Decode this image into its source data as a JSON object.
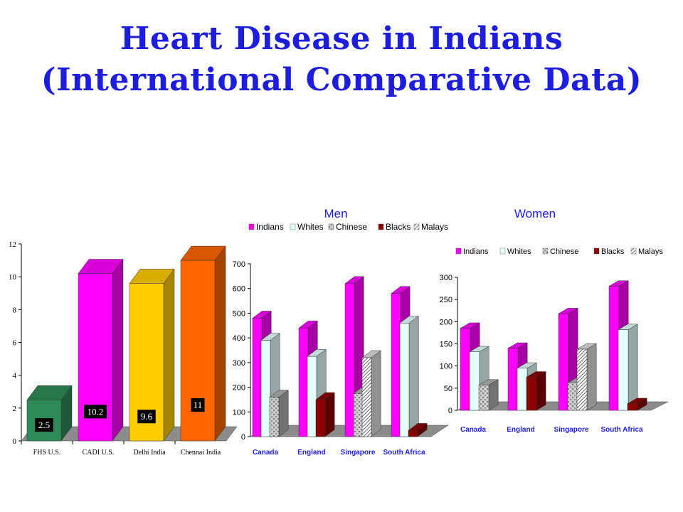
{
  "title_line1": "Heart Disease in Indians",
  "title_line2": "(International Comparative Data)",
  "chart_data": [
    {
      "type": "bar",
      "title": "",
      "categories": [
        "FHS U.S.",
        "CADI U.S.",
        "Delhi India",
        "Chennai India"
      ],
      "values": [
        2.5,
        10.2,
        9.6,
        11
      ],
      "data_labels": [
        "2.5",
        "10.2",
        "9.6",
        "11"
      ],
      "colors": [
        "#2e8b57",
        "#ff00ff",
        "#ffcc00",
        "#ff6600"
      ],
      "ylim": [
        0,
        12
      ],
      "yticks": [
        0,
        2,
        4,
        6,
        8,
        10,
        12
      ],
      "legend": "none",
      "grid": false
    },
    {
      "type": "bar",
      "title": "Men",
      "categories": [
        "Canada",
        "England",
        "Singapore",
        "South Africa"
      ],
      "series": [
        {
          "name": "Indians",
          "values": [
            480,
            440,
            620,
            580
          ],
          "color": "#ff00ff"
        },
        {
          "name": "Whites",
          "values": [
            390,
            325,
            null,
            460
          ],
          "color": "#e6ffff"
        },
        {
          "name": "Chinese",
          "values": [
            160,
            null,
            175,
            null
          ],
          "color": "#b0b0b0"
        },
        {
          "name": "Blacks",
          "values": [
            null,
            150,
            null,
            25
          ],
          "color": "#8b0000"
        },
        {
          "name": "Malays",
          "values": [
            null,
            null,
            320,
            null
          ],
          "color": "#dddddd"
        }
      ],
      "ylim": [
        0,
        700
      ],
      "yticks": [
        0,
        100,
        200,
        300,
        400,
        500,
        600,
        700
      ],
      "legend": "top",
      "grid": false
    },
    {
      "type": "bar",
      "title": "Women",
      "categories": [
        "Canada",
        "England",
        "Singapore",
        "South Africa"
      ],
      "series": [
        {
          "name": "Indians",
          "values": [
            185,
            140,
            218,
            280
          ],
          "color": "#ff00ff"
        },
        {
          "name": "Whites",
          "values": [
            132,
            95,
            null,
            182
          ],
          "color": "#e6ffff"
        },
        {
          "name": "Chinese",
          "values": [
            57,
            null,
            62,
            null
          ],
          "color": "#b0b0b0"
        },
        {
          "name": "Blacks",
          "values": [
            null,
            75,
            null,
            15
          ],
          "color": "#8b0000"
        },
        {
          "name": "Malays",
          "values": [
            null,
            null,
            138,
            null
          ],
          "color": "#dddddd"
        }
      ],
      "ylim": [
        0,
        300
      ],
      "yticks": [
        0,
        50,
        100,
        150,
        200,
        250,
        300
      ],
      "legend": "top",
      "grid": false
    }
  ]
}
